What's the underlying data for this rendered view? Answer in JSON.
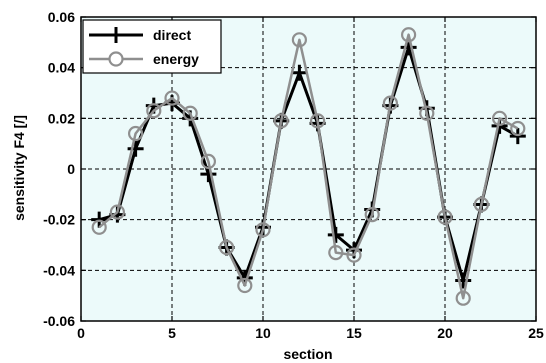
{
  "chart_data": {
    "type": "line",
    "xlabel": "section",
    "ylabel": "sensitivity F4   [/]",
    "xlim": [
      0,
      25
    ],
    "ylim": [
      -0.06,
      0.06
    ],
    "xticks": [
      0,
      5,
      10,
      15,
      20,
      25
    ],
    "yticks": [
      -0.06,
      -0.04,
      -0.02,
      0,
      0.02,
      0.04,
      0.06
    ],
    "ytick_labels": [
      "-0.06",
      "-0.04",
      "-0.02",
      "0",
      "0.02",
      "0.04",
      "0.06"
    ],
    "grid": true,
    "legend_position": "top-left",
    "plot_background": "#ecfafa",
    "series": [
      {
        "name": "direct",
        "color": "#000000",
        "marker": "plus",
        "x": [
          1,
          2,
          3,
          4,
          5,
          6,
          7,
          8,
          9,
          10,
          11,
          12,
          13,
          14,
          15,
          16,
          17,
          18,
          19,
          20,
          21,
          22,
          23,
          24
        ],
        "y": [
          -0.02,
          -0.018,
          0.008,
          0.025,
          0.026,
          0.02,
          -0.002,
          -0.031,
          -0.043,
          -0.023,
          0.019,
          0.038,
          0.018,
          -0.026,
          -0.032,
          -0.016,
          0.025,
          0.048,
          0.024,
          -0.019,
          -0.044,
          -0.014,
          0.017,
          0.013
        ]
      },
      {
        "name": "energy",
        "color": "#8f8f8f",
        "marker": "circle",
        "x": [
          1,
          2,
          3,
          4,
          5,
          6,
          7,
          8,
          9,
          10,
          11,
          12,
          13,
          14,
          15,
          16,
          17,
          18,
          19,
          20,
          21,
          22,
          23,
          24
        ],
        "y": [
          -0.023,
          -0.017,
          0.014,
          0.023,
          0.028,
          0.022,
          0.003,
          -0.031,
          -0.046,
          -0.024,
          0.019,
          0.051,
          0.019,
          -0.033,
          -0.034,
          -0.018,
          0.026,
          0.053,
          0.022,
          -0.019,
          -0.051,
          -0.014,
          0.02,
          0.016
        ]
      }
    ]
  }
}
